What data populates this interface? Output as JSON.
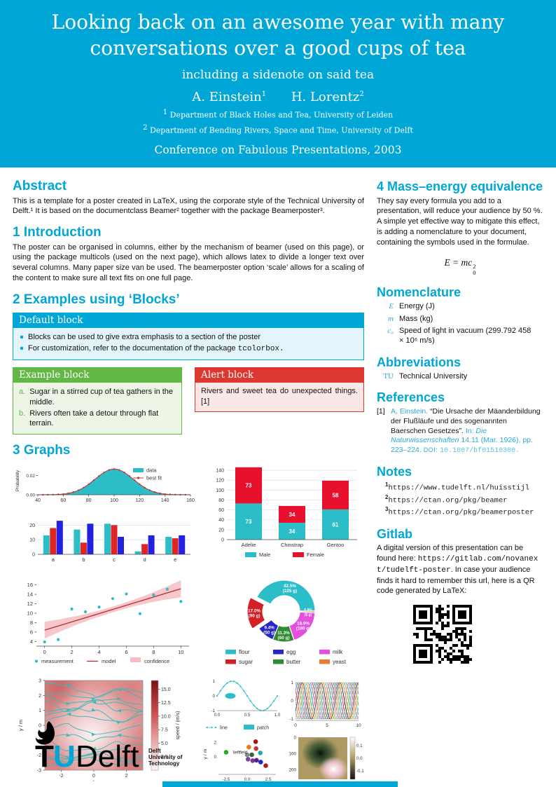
{
  "header": {
    "title": "Looking back on an awesome year with many conversations over a good cups of tea",
    "subtitle": "including a sidenote on said tea",
    "authors": [
      {
        "name": "A. Einstein",
        "sup": "1"
      },
      {
        "name": "H. Lorentz",
        "sup": "2"
      }
    ],
    "affiliations": [
      {
        "sup": "1",
        "text": "Department of Black Holes and Tea, University of Leiden"
      },
      {
        "sup": "2",
        "text": "Department of Bending Rivers, Space and Time, University of Delft"
      }
    ],
    "conference": "Conference on Fabulous Presentations, 2003"
  },
  "left": {
    "abstract": {
      "heading": "Abstract",
      "text": "This is a template for a poster created in LaTeX, using the corporate style of the Technical University of Delft.¹ It is based on the documentclass Beamer² together with the package Beamerposter³."
    },
    "introduction": {
      "heading": "1 Introduction",
      "text": "The poster can be organised in columns, either by the mechanism of beamer (used on this page), or using the package multicols (used on the next page), which allows latex to divide a longer text over several columns. Many paper size van be used. The beamerposter option ‘scale’ allows for a scaling of the content to make sure all text fits on one full page."
    },
    "blocks": {
      "heading": "2 Examples using ‘Blocks’",
      "default_block": {
        "title": "Default block",
        "items": [
          "Blocks can be used to give extra emphasis to a section of the poster",
          {
            "text": "For customization, refer to the documentation of the package ",
            "code": "tcolorbox."
          }
        ]
      },
      "example_block": {
        "title": "Example block",
        "items": [
          {
            "label": "a.",
            "text": "Sugar in a stirred cup of tea gathers in the middle."
          },
          {
            "label": "b.",
            "text": "Rivers often take a detour through flat terrain."
          }
        ]
      },
      "alert_block": {
        "title": "Alert block",
        "text": "Rivers and sweet tea do unexpected things.",
        "citation": "[1]"
      }
    },
    "graphs_heading": "3 Graphs"
  },
  "right": {
    "mass_energy": {
      "heading": "4 Mass–energy equivalence",
      "text": "They say every formula you add to a presentation, will reduce your audience by 50 %. A simple yet effective way to mitigate this effect, is adding a nomenclature to your document, containing the symbols used in the formulae.",
      "equation": {
        "lhs": "E = mc",
        "sup": "2",
        "sub": "0"
      }
    },
    "nomenclature": {
      "heading": "Nomenclature",
      "items": [
        {
          "symbol": "E",
          "definition": "Energy (J)"
        },
        {
          "symbol": "m",
          "definition": "Mass (kg)"
        },
        {
          "symbol": "c₀",
          "definition": "Speed of light in vacuum (299.792 458 × 10⁶ m/s)"
        }
      ]
    },
    "abbreviations": {
      "heading": "Abbreviations",
      "items": [
        {
          "abbr": "TU",
          "definition": "Technical University"
        }
      ]
    },
    "references": {
      "heading": "References",
      "entries": [
        {
          "num": "[1]",
          "authors": "A. Einstein.",
          "title": "“Die Ursache der Mäanderbildung der Flußläufe und des sogenannten Baerschen Gesetzes”.",
          "in_label": "In:",
          "journal": "Die Naturwissenschaften",
          "detail": "14.11 (Mar. 1926), pp. 223–224.",
          "doi_label": "DOI:",
          "doi": "10.1007/bf01510300."
        }
      ]
    },
    "notes": {
      "heading": "Notes",
      "items": [
        {
          "sup": "1",
          "url": "https://www.tudelft.nl/huisstijl"
        },
        {
          "sup": "2",
          "url": "https://ctan.org/pkg/beamer"
        },
        {
          "sup": "3",
          "url": "https://ctan.org/pkg/beamerposter"
        }
      ]
    },
    "gitlab": {
      "heading": "Gitlab",
      "text_pre": "A digital version of this presentation can be found here: ",
      "url": "https://gitlab.com/novanext/tudelft-poster",
      "text_post": ". In case your audience finds it hard to remember this url, here is a QR code generated by LaTeX:"
    }
  },
  "footer": {
    "logo": {
      "tu": "TU",
      "delft": "Delft",
      "tagline": [
        "Delft",
        "University of",
        "Technology"
      ]
    }
  },
  "colors": {
    "brand_cyan": "#00A6D6",
    "block_green": "#61B844",
    "block_red": "#DC3830",
    "chart_teal": "#2BBEC8",
    "chart_red": "#E02424",
    "chart_blue": "#2121DF"
  },
  "chart_data": [
    {
      "id": "distribution",
      "type": "area",
      "ylabel": "Probability",
      "xlim": [
        40,
        160
      ],
      "xticks": [
        40,
        60,
        80,
        100,
        120,
        140,
        160
      ],
      "yticks": [
        0,
        0.02
      ],
      "ymax": 0.029,
      "mu": 100,
      "sigma": 15,
      "peak": 0.0266,
      "legend": [
        "data",
        "best fit"
      ],
      "colors": {
        "data": "#2BBEC8",
        "best_fit": "#C23838"
      }
    },
    {
      "id": "grouped_bars",
      "type": "bar",
      "categories": [
        "a",
        "b",
        "c",
        "d",
        "e"
      ],
      "series": [
        {
          "name": "series-teal",
          "color": "#2BBEC8",
          "values": [
            13,
            17,
            21,
            2,
            12
          ]
        },
        {
          "name": "series-red",
          "color": "#E02424",
          "values": [
            18,
            8,
            20,
            7,
            11
          ]
        },
        {
          "name": "series-blue",
          "color": "#2121DF",
          "values": [
            23,
            21,
            12,
            13,
            13
          ]
        }
      ],
      "yticks": [
        0,
        10,
        20
      ],
      "ylim": [
        0,
        24
      ]
    },
    {
      "id": "penguins",
      "type": "stacked-bar",
      "categories": [
        "Adelie",
        "Chinstrap",
        "Gentoo"
      ],
      "series": [
        {
          "name": "Male",
          "color": "#2BBEC8",
          "values": [
            73,
            34,
            61
          ]
        },
        {
          "name": "Female",
          "color": "#E8112D",
          "values": [
            73,
            34,
            58
          ]
        }
      ],
      "yticks": [
        0,
        20,
        40,
        60,
        80,
        100,
        120,
        140
      ],
      "ylim": [
        0,
        150
      ],
      "legend_position": "bottom"
    },
    {
      "id": "regression",
      "type": "scatter+line",
      "points": [
        [
          0,
          3.9
        ],
        [
          1,
          4.4
        ],
        [
          2,
          10.9
        ],
        [
          3,
          10.3
        ],
        [
          4,
          11.3
        ],
        [
          5,
          13.1
        ],
        [
          6,
          14.1
        ],
        [
          7,
          9.9
        ],
        [
          8,
          13.9
        ],
        [
          9,
          15.1
        ],
        [
          10,
          12.5
        ]
      ],
      "model": {
        "intercept": 6.4,
        "slope": 0.88
      },
      "band": {
        "min_halfwidth": 0.6,
        "max_halfwidth": 1.8
      },
      "xticks": [
        0,
        2,
        4,
        6,
        8,
        10
      ],
      "yticks": [
        4,
        6,
        8,
        10,
        12,
        14,
        16
      ],
      "xlim": [
        -0.6,
        10.6
      ],
      "ylim": [
        3,
        17
      ],
      "legend": [
        "measurement",
        "model",
        "confidence"
      ],
      "colors": {
        "measurement": "#2BBEC8",
        "model": "#B03036",
        "confidence": "#F6BDC3"
      }
    },
    {
      "id": "donut",
      "type": "pie",
      "start_angle": 0,
      "direction": "ccw",
      "legend_columns": 3,
      "slices": [
        {
          "label": "flour",
          "pct": 42.5,
          "grams": 225,
          "color": "#2BBEC8"
        },
        {
          "label": "sugar",
          "pct": 17.0,
          "grams": 90,
          "color": "#D41F26",
          "explode": true
        },
        {
          "label": "egg",
          "pct": 9.4,
          "grams": 50,
          "color": "#2426C9"
        },
        {
          "label": "butter",
          "pct": 11.3,
          "grams": 60,
          "color": "#2E8B2E"
        },
        {
          "label": "milk",
          "pct": 18.9,
          "grams": 100,
          "color": "#E44FE0"
        },
        {
          "label": "yeast",
          "pct": 0.9,
          "grams": 5,
          "color": "#E87F2E"
        }
      ]
    },
    {
      "id": "stream",
      "type": "streamplot",
      "xlabel": "x / m",
      "ylabel": "y / m",
      "xlim": [
        -3,
        3
      ],
      "ylim": [
        -3,
        3
      ],
      "xticks": [
        -2,
        0,
        2
      ],
      "yticks": [
        -3,
        -2,
        -1,
        0,
        1,
        2,
        3
      ],
      "colorbar": {
        "label": "speed / (m/s)",
        "ticks": [
          2.5,
          5.0,
          7.5,
          10.0,
          12.5,
          15.0
        ],
        "max": 16.6
      },
      "line_color": "#3FB8B8"
    },
    {
      "id": "line_patch",
      "type": "line",
      "xticks": [
        0.0,
        0.5,
        1.0
      ],
      "yticks": [
        -1,
        0,
        1
      ],
      "legend": [
        "line",
        "patch"
      ],
      "color": "#2BBEC8",
      "ellipse": {
        "x": 0.22,
        "y": 0
      }
    },
    {
      "id": "phases",
      "type": "line",
      "xticks": [
        0,
        5,
        10
      ],
      "yticks": [
        -1,
        0,
        1
      ],
      "n_curves": 10,
      "palette": [
        "#d62728",
        "#1f77b4",
        "#2ca02c",
        "#9467bd",
        "#8c564b",
        "#e377c2",
        "#17becf",
        "#bcbd22",
        "#ff7f0e",
        "#111111"
      ]
    },
    {
      "id": "scatter_field",
      "type": "scatter",
      "xlabel": "x / m",
      "ylabel": "y / m",
      "xticks": [
        -2.5,
        0.0,
        2.5
      ],
      "yticks": [
        0,
        2
      ],
      "xlim": [
        -3.4,
        3.4
      ],
      "ylim": [
        -2.1,
        2.9
      ],
      "annotation": "\\leftfield",
      "points": [
        [
          -2.5,
          0.65,
          "#22aa22"
        ],
        [
          0.2,
          1.35,
          "#e87818"
        ],
        [
          1.0,
          2.1,
          "#aa1111"
        ],
        [
          1.05,
          1.15,
          "#cc3333"
        ],
        [
          0.0,
          0.3,
          "#888888"
        ],
        [
          0.55,
          0.3,
          "#336633"
        ],
        [
          1.55,
          0.55,
          "#22aaaa"
        ],
        [
          0.1,
          -0.3,
          "#7744aa"
        ],
        [
          0.65,
          -0.5,
          "#883399"
        ],
        [
          1.1,
          -0.45,
          "#552288"
        ],
        [
          1.6,
          -0.7,
          "#2222cc"
        ],
        [
          2.2,
          -1.2,
          "#aa2222"
        ]
      ]
    },
    {
      "id": "imshow",
      "type": "heatmap",
      "xticks": [
        0,
        200
      ],
      "yticks": [
        0,
        100,
        200
      ],
      "colorbar": {
        "ticks": [
          0.1,
          0.0,
          -0.1
        ]
      },
      "background": "#ac9a62"
    }
  ]
}
